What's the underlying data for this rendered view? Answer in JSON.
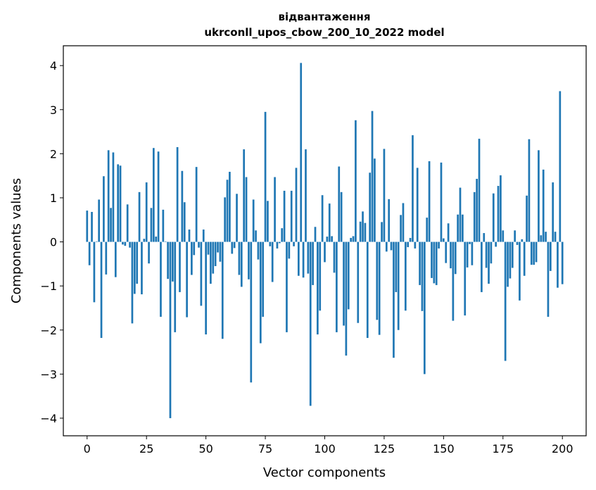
{
  "colors": {
    "bar": "#1f77b4",
    "axis": "#000000",
    "background": "#ffffff"
  },
  "chart_data": {
    "type": "bar",
    "title_line1": "відвантаження",
    "title_line2": "ukrconll_upos_cbow_200_10_2022 model",
    "xlabel": "Vector components",
    "ylabel": "Components values",
    "xlim": [
      -10,
      210
    ],
    "ylim": [
      -4.4,
      4.45
    ],
    "xticks": [
      0,
      25,
      50,
      75,
      100,
      125,
      150,
      175,
      200
    ],
    "xtick_labels": [
      "0",
      "25",
      "50",
      "75",
      "100",
      "125",
      "150",
      "175",
      "200"
    ],
    "yticks": [
      4,
      3,
      2,
      1,
      0,
      -1,
      -2,
      -3,
      -4
    ],
    "ytick_labels": [
      "4",
      "3",
      "2",
      "1",
      "0",
      "−1",
      "−2",
      "−3",
      "−4"
    ],
    "grid": false,
    "values": [
      0.71,
      -0.53,
      0.68,
      -1.37,
      0.01,
      0.96,
      -2.18,
      1.49,
      -0.74,
      2.08,
      0.77,
      2.03,
      -0.8,
      1.76,
      1.73,
      -0.06,
      -0.09,
      0.85,
      -0.13,
      -1.85,
      -1.18,
      -0.95,
      1.13,
      -1.19,
      0.07,
      1.35,
      -0.49,
      0.77,
      2.13,
      0.12,
      2.05,
      -1.7,
      0.73,
      0.01,
      -0.84,
      -4.0,
      -0.9,
      -2.05,
      2.15,
      -1.14,
      1.61,
      0.9,
      -1.71,
      0.28,
      -0.75,
      -0.3,
      1.7,
      -0.13,
      -1.45,
      0.28,
      -2.1,
      -0.29,
      -0.95,
      -0.72,
      -0.55,
      -0.24,
      -0.45,
      -2.2,
      1.01,
      1.41,
      1.59,
      -0.27,
      -0.14,
      1.09,
      -0.75,
      -1.02,
      2.1,
      1.47,
      -0.85,
      -3.19,
      0.96,
      0.26,
      -0.4,
      -2.3,
      -1.7,
      2.95,
      0.93,
      -0.1,
      -0.91,
      1.47,
      -0.15,
      -0.03,
      0.31,
      1.16,
      -2.05,
      -0.38,
      1.16,
      -0.1,
      1.68,
      -0.77,
      4.06,
      -0.81,
      2.1,
      -0.72,
      -3.72,
      -0.98,
      0.34,
      -2.1,
      -1.56,
      1.06,
      -0.46,
      0.12,
      0.87,
      0.13,
      -0.7,
      -2.05,
      1.71,
      1.13,
      -1.9,
      -2.58,
      -1.53,
      0.09,
      0.13,
      2.76,
      -1.84,
      0.46,
      0.69,
      0.43,
      -2.18,
      1.57,
      2.97,
      1.89,
      -1.77,
      -2.11,
      0.45,
      2.11,
      -0.22,
      0.97,
      -0.19,
      -2.63,
      -1.14,
      -2.0,
      0.61,
      0.88,
      -1.56,
      -0.12,
      0.09,
      2.42,
      -0.15,
      1.68,
      -0.98,
      -1.57,
      -3.0,
      0.55,
      1.83,
      -0.82,
      -0.94,
      -0.98,
      -0.15,
      1.8,
      0.08,
      -0.48,
      0.42,
      -0.6,
      -1.79,
      -0.73,
      0.62,
      1.23,
      0.62,
      -1.67,
      -0.58,
      -0.05,
      -0.53,
      1.13,
      1.43,
      2.34,
      -1.14,
      0.2,
      -0.59,
      -0.95,
      -0.49,
      1.1,
      -0.11,
      1.27,
      1.51,
      0.26,
      -2.7,
      -1.02,
      -0.83,
      -0.59,
      0.26,
      -0.07,
      -1.33,
      0.06,
      -0.77,
      1.05,
      2.33,
      -0.52,
      -0.52,
      -0.46,
      2.08,
      0.15,
      1.64,
      0.23,
      -1.7,
      -0.66,
      1.35,
      0.23,
      -1.04,
      3.42,
      -0.96
    ]
  }
}
